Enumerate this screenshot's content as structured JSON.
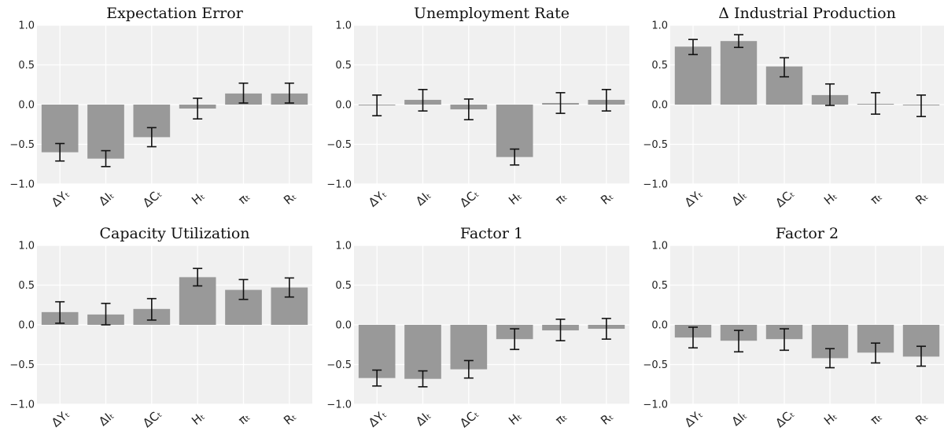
{
  "chart_data": [
    {
      "type": "bar",
      "title": "Expectation Error",
      "categories": [
        "ΔYₜ",
        "ΔIₜ",
        "ΔCₜ",
        "Hₜ",
        "πₜ",
        "Rₜ"
      ],
      "values": [
        -0.6,
        -0.68,
        -0.41,
        -0.05,
        0.14,
        0.14
      ],
      "error_low": [
        -0.71,
        -0.78,
        -0.53,
        -0.18,
        0.02,
        0.02
      ],
      "error_high": [
        -0.49,
        -0.58,
        -0.29,
        0.08,
        0.27,
        0.27
      ],
      "ylim": [
        -1.0,
        1.0
      ],
      "yticks": [
        "1.0",
        "0.5",
        "0.0",
        "−0.5",
        "−1.0"
      ],
      "grid": true
    },
    {
      "type": "bar",
      "title": "Unemployment Rate",
      "categories": [
        "ΔYₜ",
        "ΔIₜ",
        "ΔCₜ",
        "Hₜ",
        "πₜ",
        "Rₜ"
      ],
      "values": [
        0.0,
        0.06,
        -0.06,
        -0.66,
        0.02,
        0.06
      ],
      "error_low": [
        -0.14,
        -0.08,
        -0.19,
        -0.76,
        -0.11,
        -0.08
      ],
      "error_high": [
        0.12,
        0.19,
        0.07,
        -0.56,
        0.15,
        0.19
      ],
      "ylim": [
        -1.0,
        1.0
      ],
      "yticks": [
        "1.0",
        "0.5",
        "0.0",
        "−0.5",
        "−1.0"
      ],
      "grid": true
    },
    {
      "type": "bar",
      "title": "Δ Industrial Production",
      "categories": [
        "ΔYₜ",
        "ΔIₜ",
        "ΔCₜ",
        "Hₜ",
        "πₜ",
        "Rₜ"
      ],
      "values": [
        0.73,
        0.8,
        0.48,
        0.12,
        0.01,
        -0.01
      ],
      "error_low": [
        0.63,
        0.72,
        0.35,
        -0.01,
        -0.12,
        -0.15
      ],
      "error_high": [
        0.82,
        0.88,
        0.59,
        0.26,
        0.15,
        0.12
      ],
      "ylim": [
        -1.0,
        1.0
      ],
      "yticks": [
        "1.0",
        "0.5",
        "0.0",
        "−0.5",
        "−1.0"
      ],
      "grid": true
    },
    {
      "type": "bar",
      "title": "Capacity Utilization",
      "categories": [
        "ΔYₜ",
        "ΔIₜ",
        "ΔCₜ",
        "Hₜ",
        "πₜ",
        "Rₜ"
      ],
      "values": [
        0.16,
        0.13,
        0.2,
        0.6,
        0.44,
        0.47
      ],
      "error_low": [
        0.02,
        0.0,
        0.06,
        0.49,
        0.32,
        0.35
      ],
      "error_high": [
        0.29,
        0.27,
        0.33,
        0.71,
        0.57,
        0.59
      ],
      "ylim": [
        -1.0,
        1.0
      ],
      "yticks": [
        "1.0",
        "0.5",
        "0.0",
        "−0.5",
        "−1.0"
      ],
      "grid": true
    },
    {
      "type": "bar",
      "title": "Factor 1",
      "categories": [
        "ΔYₜ",
        "ΔIₜ",
        "ΔCₜ",
        "Hₜ",
        "πₜ",
        "Rₜ"
      ],
      "values": [
        -0.67,
        -0.68,
        -0.56,
        -0.18,
        -0.07,
        -0.05
      ],
      "error_low": [
        -0.77,
        -0.78,
        -0.67,
        -0.31,
        -0.2,
        -0.18
      ],
      "error_high": [
        -0.57,
        -0.58,
        -0.45,
        -0.05,
        0.07,
        0.08
      ],
      "ylim": [
        -1.0,
        1.0
      ],
      "yticks": [
        "1.0",
        "0.5",
        "0.0",
        "−0.5",
        "−1.0"
      ],
      "grid": true
    },
    {
      "type": "bar",
      "title": "Factor 2",
      "categories": [
        "ΔYₜ",
        "ΔIₜ",
        "ΔCₜ",
        "Hₜ",
        "πₜ",
        "Rₜ"
      ],
      "values": [
        -0.16,
        -0.2,
        -0.18,
        -0.42,
        -0.35,
        -0.4
      ],
      "error_low": [
        -0.29,
        -0.34,
        -0.32,
        -0.54,
        -0.48,
        -0.52
      ],
      "error_high": [
        -0.03,
        -0.07,
        -0.05,
        -0.3,
        -0.23,
        -0.27
      ],
      "ylim": [
        -1.0,
        1.0
      ],
      "yticks": [
        "1.0",
        "0.5",
        "0.0",
        "−0.5",
        "−1.0"
      ],
      "grid": true
    }
  ],
  "colors": {
    "bar": "#999999",
    "plot_background": "#f0f0f0",
    "grid": "#ffffff",
    "error_bar": "#111111"
  }
}
